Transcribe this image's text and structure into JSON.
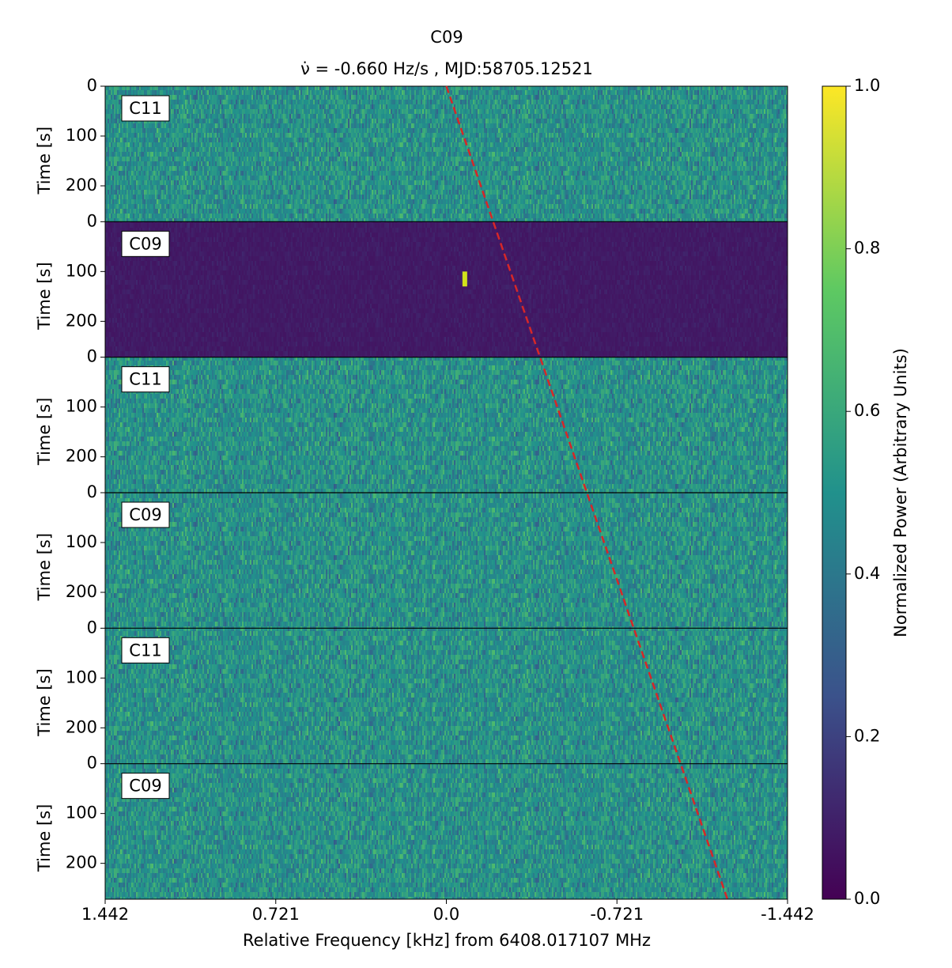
{
  "chart_data": {
    "type": "waterfall",
    "title": "C09",
    "subtitle": "ν̇ = -0.660 Hz/s , MJD:58705.12521",
    "xlabel": "Relative Frequency [kHz] from 6408.017107 MHz",
    "ylabel": "Time [s]",
    "xlim": [
      1.442,
      -1.442
    ],
    "xticks": [
      1.442,
      0.721,
      {
        "value": 0,
        "label": "0.0"
      },
      -0.721,
      -1.442
    ],
    "ylim": [
      0,
      272
    ],
    "yticks": [
      0,
      100,
      200
    ],
    "panels": [
      {
        "name": "C11",
        "color": "#26828e"
      },
      {
        "name": "C09",
        "color": "#44075f",
        "signal": {
          "x": -0.078,
          "t": [
            100,
            130
          ]
        }
      },
      {
        "name": "C11",
        "color": "#26828e"
      },
      {
        "name": "C09",
        "color": "#26828e"
      },
      {
        "name": "C11",
        "color": "#26828e"
      },
      {
        "name": "C09",
        "color": "#26828e"
      }
    ],
    "drift_line": {
      "x": [
        0,
        -1.188
      ],
      "color": "#d62728"
    },
    "colorbar": {
      "label": "Normalized Power (Arbitrary Units)",
      "lim": [
        0,
        1
      ],
      "ticks": [
        {
          "value": 0,
          "label": "0.0"
        },
        0.2,
        0.4,
        0.6,
        0.8,
        {
          "value": 1,
          "label": "1.0"
        }
      ]
    }
  }
}
